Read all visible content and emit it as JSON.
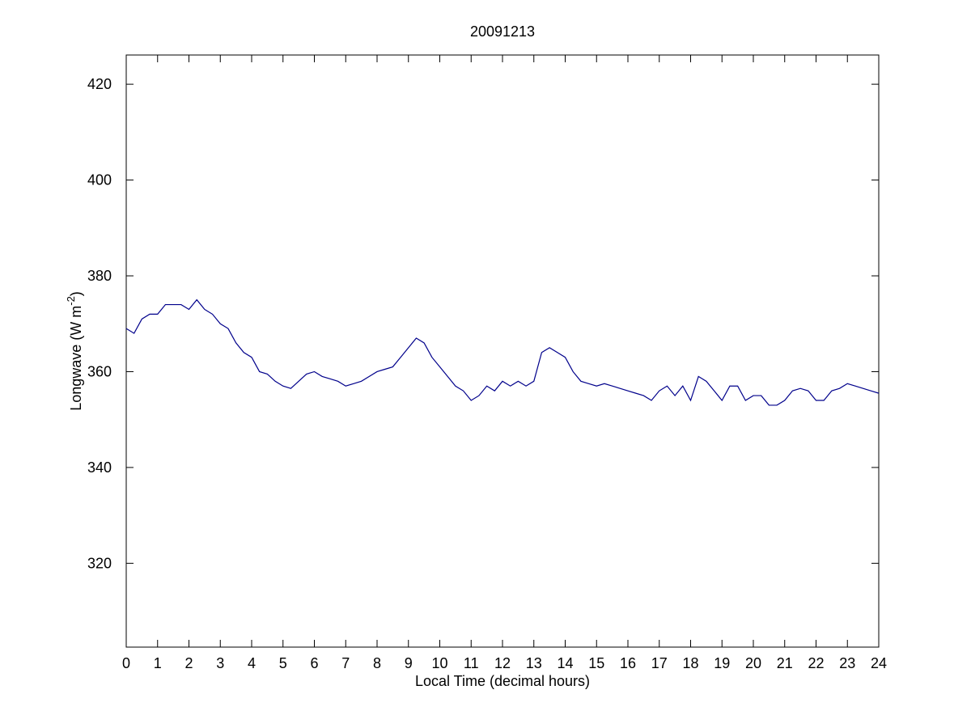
{
  "chart_data": {
    "type": "line",
    "title": "20091213",
    "x_label": "Local Time (decimal hours)",
    "y_label": [
      "Longwave (W m",
      "-2",
      ")"
    ],
    "x": [
      0,
      0.25,
      0.5,
      0.75,
      1,
      1.25,
      1.5,
      1.75,
      2,
      2.25,
      2.5,
      2.75,
      3,
      3.25,
      3.5,
      3.75,
      4,
      4.25,
      4.5,
      4.75,
      5,
      5.25,
      5.5,
      5.75,
      6,
      6.25,
      6.5,
      6.75,
      7,
      7.25,
      7.5,
      7.75,
      8,
      8.25,
      8.5,
      8.75,
      9,
      9.25,
      9.5,
      9.75,
      10,
      10.25,
      10.5,
      10.75,
      11,
      11.25,
      11.5,
      11.75,
      12,
      12.25,
      12.5,
      12.75,
      13,
      13.25,
      13.5,
      13.75,
      14,
      14.25,
      14.5,
      14.75,
      15,
      15.25,
      15.5,
      15.75,
      16,
      16.25,
      16.5,
      16.75,
      17,
      17.25,
      17.5,
      17.75,
      18,
      18.25,
      18.5,
      18.75,
      19,
      19.25,
      19.5,
      19.75,
      20,
      20.25,
      20.5,
      20.75,
      21,
      21.25,
      21.5,
      21.75,
      22,
      22.25,
      22.5,
      22.75,
      23,
      23.25,
      23.5,
      23.75,
      24
    ],
    "series": [
      {
        "name": "Longwave",
        "color": "#00008b",
        "values": [
          369,
          368,
          371,
          372,
          372,
          374,
          374,
          374,
          373,
          375,
          373,
          372,
          370,
          369,
          366,
          364,
          363,
          360,
          359.5,
          358,
          357,
          356.5,
          358,
          359.5,
          360,
          359,
          358.5,
          358,
          357,
          357.5,
          358,
          359,
          360,
          360.5,
          361,
          363,
          365,
          367,
          366,
          363,
          361,
          359,
          357,
          356,
          354,
          355,
          357,
          356,
          358,
          357,
          358,
          357,
          358,
          364,
          365,
          364,
          363,
          360,
          358,
          357.5,
          357,
          357.5,
          357,
          356.5,
          356,
          355.5,
          355,
          354,
          356,
          357,
          355,
          357,
          354,
          359,
          358,
          356,
          354,
          357,
          357,
          354,
          355,
          355,
          353,
          353,
          354,
          356,
          356.5,
          356,
          354,
          354,
          356,
          356.5,
          357.5,
          357,
          356.5,
          356,
          355.5
        ]
      }
    ],
    "xlim": [
      0,
      24
    ],
    "xticks": [
      0,
      1,
      2,
      3,
      4,
      5,
      6,
      7,
      8,
      9,
      10,
      11,
      12,
      13,
      14,
      15,
      16,
      17,
      18,
      19,
      20,
      21,
      22,
      23,
      24
    ],
    "ylim": [
      302.5,
      426.1
    ],
    "yticks": [
      320,
      340,
      360,
      380,
      400,
      420
    ],
    "grid": false
  }
}
